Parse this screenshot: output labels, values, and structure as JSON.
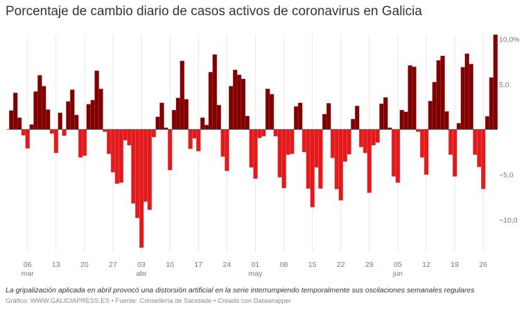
{
  "title": "Porcentaje de cambio diario de casos activos de coronavirus en Galicia",
  "footnote": "La gripalización aplicada en abril provocó una distorsión artificial en la serie interrumpiendo temporalmente sus oscilaciones semanales regulares",
  "credit": "Gráfico: WWW.GALICIAPRESS.ES • Fuente: Consellería de Sanidade • Creado con Datawrapper",
  "colors": {
    "positive": "#7f0000",
    "negative": "#e31a1c",
    "grid": "#e6e6e6",
    "zero": "#555555"
  },
  "chart_data": {
    "type": "bar",
    "title": "Porcentaje de cambio diario de casos activos de coronavirus en Galicia",
    "start_date": "2020-03-02",
    "end_date": "2020-06-29",
    "ylim": [
      -13.1,
      10.5
    ],
    "grid": "vertical",
    "y_ticks": [
      {
        "value": 10,
        "label": "10,0%"
      },
      {
        "value": 5,
        "label": "5,0"
      },
      {
        "value": -5,
        "label": "−5,0"
      },
      {
        "value": -10,
        "label": "−10,0"
      }
    ],
    "x_ticks": [
      {
        "day": 4,
        "label": "06",
        "month": "mar"
      },
      {
        "day": 11,
        "label": "13",
        "month": ""
      },
      {
        "day": 18,
        "label": "20",
        "month": ""
      },
      {
        "day": 25,
        "label": "27",
        "month": ""
      },
      {
        "day": 32,
        "label": "03",
        "month": "abr"
      },
      {
        "day": 39,
        "label": "10",
        "month": ""
      },
      {
        "day": 46,
        "label": "17",
        "month": ""
      },
      {
        "day": 53,
        "label": "24",
        "month": ""
      },
      {
        "day": 60,
        "label": "01",
        "month": "may"
      },
      {
        "day": 67,
        "label": "08",
        "month": ""
      },
      {
        "day": 74,
        "label": "15",
        "month": ""
      },
      {
        "day": 81,
        "label": "22",
        "month": ""
      },
      {
        "day": 88,
        "label": "29",
        "month": ""
      },
      {
        "day": 95,
        "label": "05",
        "month": "jun"
      },
      {
        "day": 102,
        "label": "12",
        "month": ""
      },
      {
        "day": 109,
        "label": "19",
        "month": ""
      },
      {
        "day": 116,
        "label": "26",
        "month": ""
      }
    ],
    "values": [
      2.1,
      4.05,
      1.3,
      -0.65,
      -2.1,
      0.55,
      4.2,
      6.0,
      4.8,
      2.2,
      -0.45,
      -2.6,
      1.85,
      -0.7,
      3.1,
      4.4,
      1.6,
      -3.1,
      -2.9,
      2.8,
      3.25,
      6.5,
      4.5,
      -0.25,
      -2.7,
      -4.75,
      -6.0,
      -5.9,
      -1.2,
      -1.75,
      -8.2,
      -9.8,
      -13.1,
      -8.0,
      -8.9,
      -0.85,
      1.4,
      2.95,
      0.2,
      -4.5,
      2.15,
      3.5,
      7.6,
      3.35,
      -2.15,
      -1.0,
      -2.4,
      1.3,
      0.5,
      6.35,
      8.3,
      2.7,
      -3.0,
      -4.6,
      4.8,
      6.6,
      6.05,
      5.6,
      1.5,
      -4.2,
      -5.45,
      -0.95,
      -0.75,
      4.5,
      3.9,
      -0.75,
      -5.3,
      -6.5,
      -2.8,
      -2.7,
      2.55,
      2.95,
      -2.5,
      -6.55,
      -8.6,
      -4.2,
      -6.55,
      1.7,
      2.9,
      -3.15,
      -6.6,
      -7.85,
      -3.55,
      -2.75,
      1.15,
      2.6,
      -1.95,
      -2.6,
      -7.0,
      -1.75,
      -1.45,
      2.85,
      3.55,
      0.2,
      -5.2,
      -5.9,
      2.15,
      1.95,
      7.1,
      6.95,
      -0.25,
      -3.1,
      -5.0,
      3.15,
      5.25,
      7.65,
      8.15,
      2.0,
      -2.8,
      -5.2,
      0.7,
      6.9,
      8.4,
      7.25,
      -2.8,
      -4.15,
      -6.6,
      1.45,
      5.75,
      10.5
    ]
  }
}
